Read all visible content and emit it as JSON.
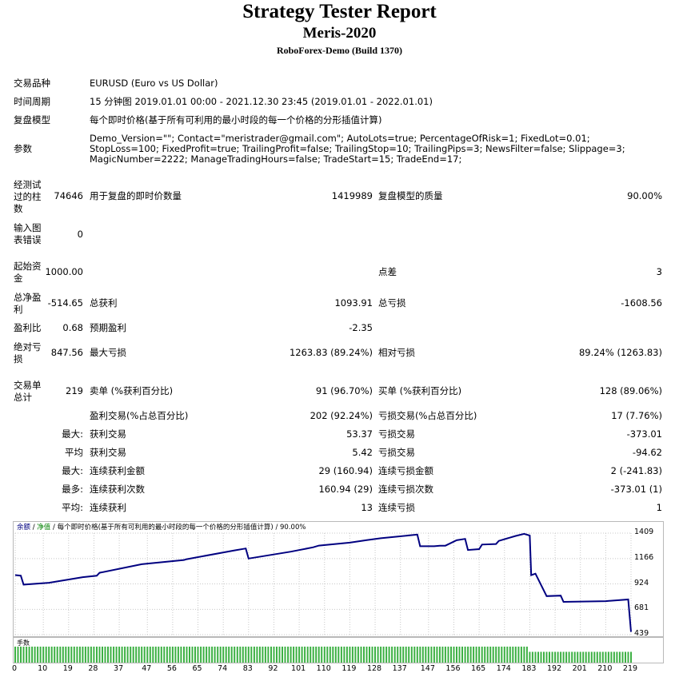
{
  "header": {
    "title": "Strategy Tester Report",
    "subtitle": "Meris-2020",
    "build": "RoboForex-Demo (Build 1370)"
  },
  "info": {
    "symbol_label": "交易品种",
    "symbol_value": "EURUSD (Euro vs US Dollar)",
    "period_label": "时间周期",
    "period_value": "15 分钟图 2019.01.01 00:00 - 2021.12.30 23:45 (2019.01.01 - 2022.01.01)",
    "model_label": "复盘模型",
    "model_value": "每个即时价格(基于所有可利用的最小时段的每一个价格的分形插值计算)",
    "params_label": "参数",
    "params_value": "Demo_Version=\"\"; Contact=\"meristrader@gmail.com\"; AutoLots=true; PercentageOfRisk=1; FixedLot=0.01; StopLoss=100; FixedProfit=true; TrailingProfit=false; TrailingStop=10; TrailingPips=3; NewsFilter=false; Slippage=3; MagicNumber=2222; ManageTradingHours=false; TradeStart=15; TradeEnd=17;"
  },
  "stats": {
    "bars_label": "经测试过的柱数",
    "bars_value": "74646",
    "ticks_label": "用于复盘的即时价数量",
    "ticks_value": "1419989",
    "quality_label": "复盘模型的质量",
    "quality_value": "90.00%",
    "errors_label": "输入图表错误",
    "errors_value": "0",
    "deposit_label": "起始资金",
    "deposit_value": "1000.00",
    "spread_label": "点差",
    "spread_value": "3",
    "net_label": "总净盈利",
    "net_value": "-514.65",
    "gross_profit_label": "总获利",
    "gross_profit_value": "1093.91",
    "gross_loss_label": "总亏损",
    "gross_loss_value": "-1608.56",
    "pf_label": "盈利比",
    "pf_value": "0.68",
    "payoff_label": "预期盈利",
    "payoff_value": "-2.35",
    "abs_dd_label": "绝对亏损",
    "abs_dd_value": "847.56",
    "max_dd_label": "最大亏损",
    "max_dd_value": "1263.83 (89.24%)",
    "rel_dd_label": "相对亏损",
    "rel_dd_value": "89.24% (1263.83)",
    "total_trades_label": "交易单总计",
    "total_trades_value": "219",
    "short_label": "卖单 (%获利百分比)",
    "short_value": "91 (96.70%)",
    "long_label": "买单 (%获利百分比)",
    "long_value": "128 (89.06%)",
    "win_label": "盈利交易(%占总百分比)",
    "win_value": "202 (92.24%)",
    "loss_label": "亏损交易(%占总百分比)",
    "loss_value": "17 (7.76%)",
    "max_prefix": "最大:",
    "avg_prefix": "平均",
    "max2_prefix": "最大:",
    "most_prefix": "最多:",
    "avg2_prefix": "平均:",
    "largest_win_label": "获利交易",
    "largest_win_value": "53.37",
    "largest_loss_label": "亏损交易",
    "largest_loss_value": "-373.01",
    "avg_win_label": "获利交易",
    "avg_win_value": "5.42",
    "avg_loss_label": "亏损交易",
    "avg_loss_value": "-94.62",
    "max_cons_win_amt_label": "连续获利金额",
    "max_cons_win_amt_value": "29 (160.94)",
    "max_cons_loss_amt_label": "连续亏损金额",
    "max_cons_loss_amt_value": "2 (-241.83)",
    "max_cons_win_cnt_label": "连续获利次数",
    "max_cons_win_cnt_value": "160.94 (29)",
    "max_cons_loss_cnt_label": "连续亏损次数",
    "max_cons_loss_cnt_value": "-373.01 (1)",
    "avg_cons_win_label": "连续获利",
    "avg_cons_win_value": "13",
    "avg_cons_loss_label": "连续亏损",
    "avg_cons_loss_value": "1"
  },
  "chart_data": {
    "type": "line",
    "legend": {
      "balance": "余额",
      "sep1": "/",
      "equity": "净值",
      "sep2": "/",
      "model": "每个即时价格(基于所有可利用的最小时段的每一个价格的分形插值计算)",
      "sep3": "/",
      "quality": "90.00%"
    },
    "volume_label": "手数",
    "line_color": "#000080",
    "bar_color": "#3cb043",
    "y_ticks": [
      "1409",
      "1166",
      "924",
      "681",
      "439"
    ],
    "x_ticks": [
      "0",
      "10",
      "19",
      "28",
      "37",
      "47",
      "56",
      "65",
      "74",
      "83",
      "92",
      "101",
      "110",
      "119",
      "128",
      "137",
      "147",
      "156",
      "165",
      "174",
      "183",
      "192",
      "201",
      "210",
      "219"
    ],
    "ylim": [
      439,
      1409
    ],
    "xlim": [
      0,
      219
    ],
    "series": [
      {
        "x": [
          0,
          2,
          3,
          12,
          24,
          29,
          30,
          45,
          60,
          61,
          78,
          82,
          83,
          98,
          106,
          108,
          119,
          125,
          130,
          143,
          144,
          149,
          151,
          153,
          157,
          160,
          161,
          165,
          166,
          171,
          172,
          178,
          181,
          183,
          183.5,
          185,
          189,
          194,
          195,
          210,
          218,
          219
        ],
        "y": [
          1008,
          1003,
          917,
          935,
          988,
          1002,
          1030,
          1112,
          1152,
          1160,
          1244,
          1262,
          1166,
          1232,
          1274,
          1290,
          1318,
          1342,
          1360,
          1395,
          1284,
          1284,
          1289,
          1289,
          1341,
          1354,
          1248,
          1256,
          1300,
          1305,
          1335,
          1382,
          1402,
          1386,
          1007,
          1022,
          807,
          812,
          752,
          759,
          775,
          466
        ]
      }
    ]
  }
}
